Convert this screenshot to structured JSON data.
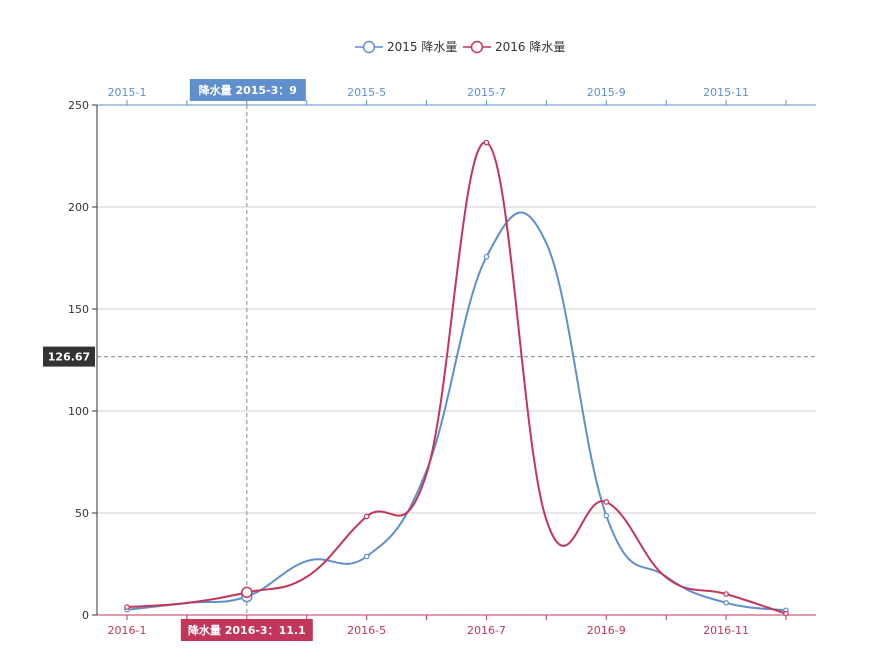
{
  "chart_data": {
    "type": "line",
    "legend": {
      "position": "top-center",
      "entries": [
        "2015 降水量",
        "2016 降水量"
      ]
    },
    "series": [
      {
        "name": "2015 降水量",
        "color": "#5f8fcc",
        "x_axis": "top",
        "x": [
          "2015-1",
          "2015-2",
          "2015-3",
          "2015-4",
          "2015-5",
          "2015-6",
          "2015-7",
          "2015-8",
          "2015-9",
          "2015-10",
          "2015-11",
          "2015-12"
        ],
        "values": [
          2.6,
          5.9,
          9.0,
          26.4,
          28.7,
          70.7,
          175.6,
          182.2,
          48.7,
          18.8,
          6.0,
          2.3
        ]
      },
      {
        "name": "2016 降水量",
        "color": "#c23659",
        "x_axis": "bottom",
        "x": [
          "2016-1",
          "2016-2",
          "2016-3",
          "2016-4",
          "2016-5",
          "2016-6",
          "2016-7",
          "2016-8",
          "2016-9",
          "2016-10",
          "2016-11",
          "2016-12"
        ],
        "values": [
          3.9,
          5.9,
          11.1,
          18.7,
          48.3,
          69.2,
          231.6,
          46.6,
          55.4,
          18.4,
          10.3,
          0.7
        ]
      }
    ],
    "top_tick_labels": [
      "2015-1",
      "2015-3",
      "2015-5",
      "2015-7",
      "2015-9",
      "2015-11"
    ],
    "bottom_tick_labels": [
      "2016-1",
      "2016-3",
      "2016-5",
      "2016-7",
      "2016-9",
      "2016-11"
    ],
    "y_ticks": [
      0,
      50,
      100,
      150,
      200,
      250
    ],
    "ylim": [
      0,
      250
    ],
    "grid": "horizontal",
    "crosshair": {
      "value_label": "126.67",
      "top_tooltip": "降水量  2015-3：9",
      "bottom_tooltip": "降水量  2016-3：11.1",
      "pointer_value": 126.67,
      "pointer_index": 2
    },
    "colors": {
      "top_axis": "#5f8fcc",
      "bottom_axis": "#c23659",
      "grid": "#d0d0d0",
      "y_axis": "#333333",
      "value_label_bg": "#333333"
    }
  }
}
